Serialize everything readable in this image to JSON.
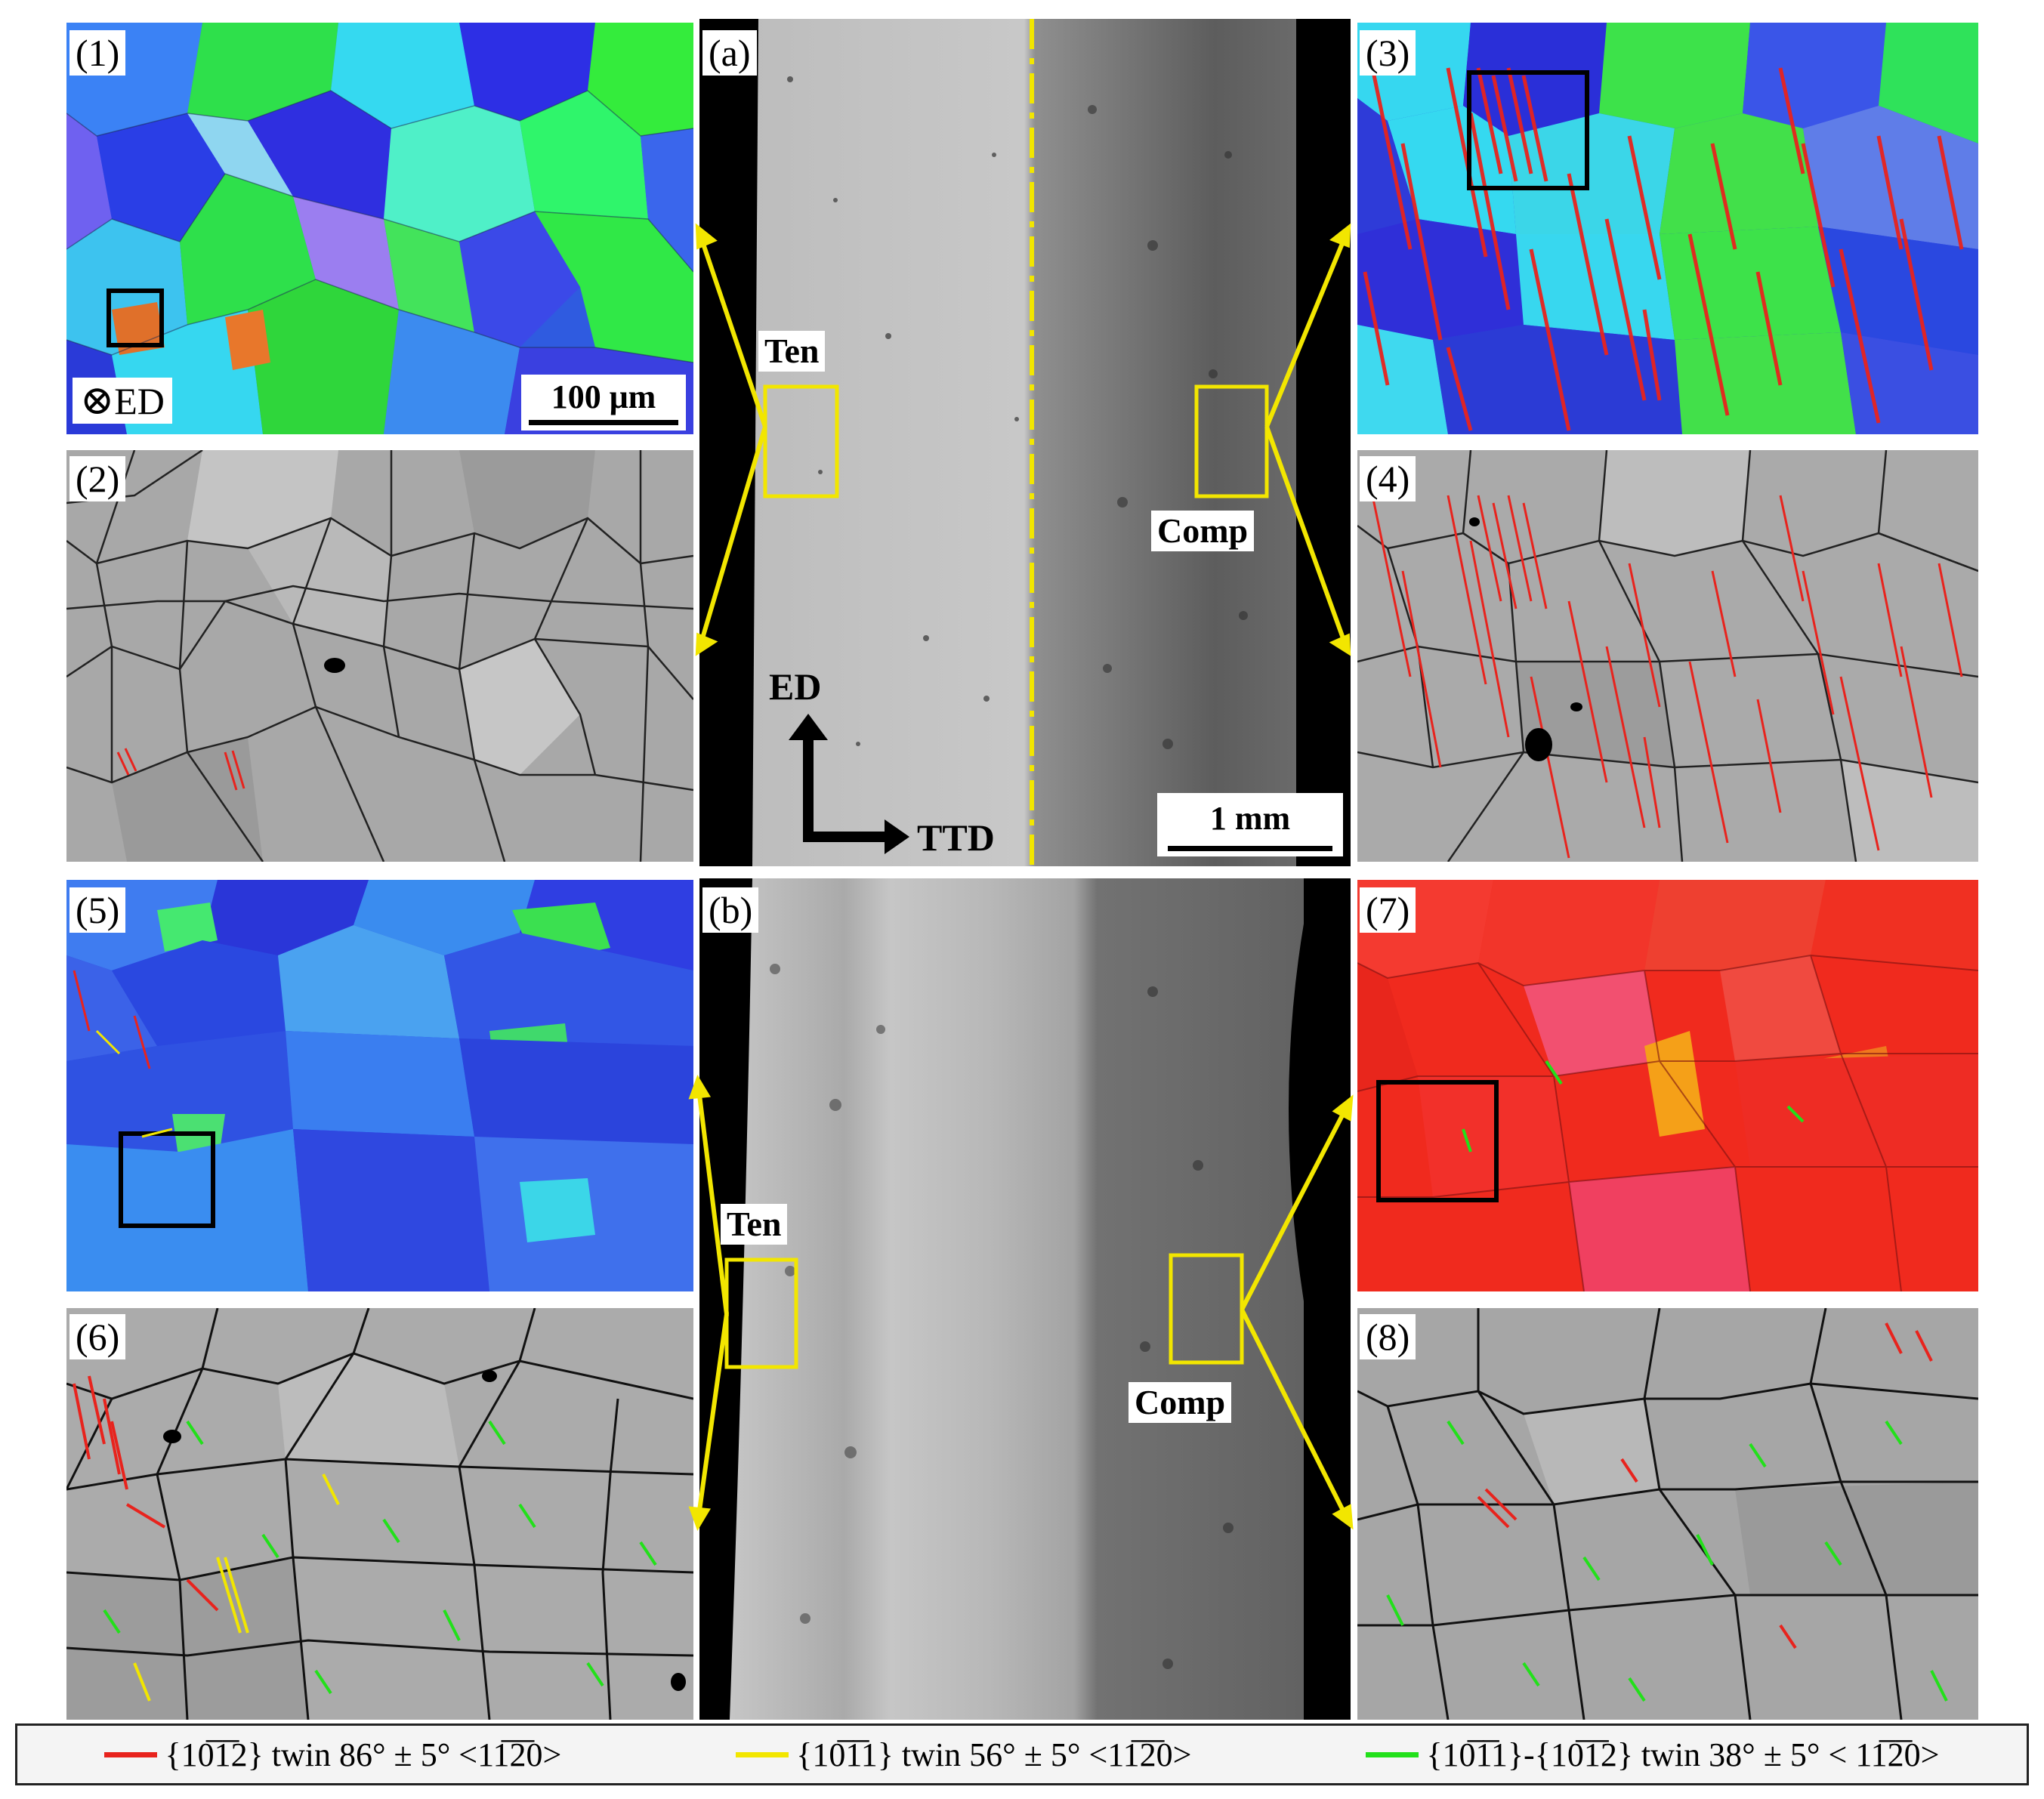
{
  "figure": {
    "center_panels": [
      {
        "label": "(a)",
        "scale_bar": "1 mm",
        "axis_vertical": "ED",
        "axis_horizontal": "TTD",
        "tension_label": "Ten",
        "compression_label": "Comp"
      },
      {
        "label": "(b)",
        "tension_label": "Ten",
        "compression_label": "Comp"
      }
    ],
    "side_panels": [
      {
        "label": "(1)",
        "map": "IPF",
        "extras": {
          "direction": "ED",
          "scale_bar": "100 μm"
        }
      },
      {
        "label": "(2)",
        "map": "boundary"
      },
      {
        "label": "(3)",
        "map": "IPF"
      },
      {
        "label": "(4)",
        "map": "boundary"
      },
      {
        "label": "(5)",
        "map": "IPF"
      },
      {
        "label": "(6)",
        "map": "boundary"
      },
      {
        "label": "(7)",
        "map": "IPF"
      },
      {
        "label": "(8)",
        "map": "boundary"
      }
    ],
    "direction_symbol": "⊗",
    "colors": {
      "twin_1012": "#e8231d",
      "twin_1011": "#f2e600",
      "twin_double": "#22e01a",
      "highlight_box": "#f2e600"
    },
    "legend": [
      {
        "text": "{10̅1̅2} twin 86° ± 5° <11̅2̅0>",
        "color": "#e8231d"
      },
      {
        "text": "{10̅1̅1} twin 56° ± 5° <11̅2̅0>",
        "color": "#f2e600"
      },
      {
        "text": "{10̅1̅1}-{10̅1̅2} twin 38° ± 5° < 11̅2̅0>",
        "color": "#22e01a"
      }
    ]
  }
}
